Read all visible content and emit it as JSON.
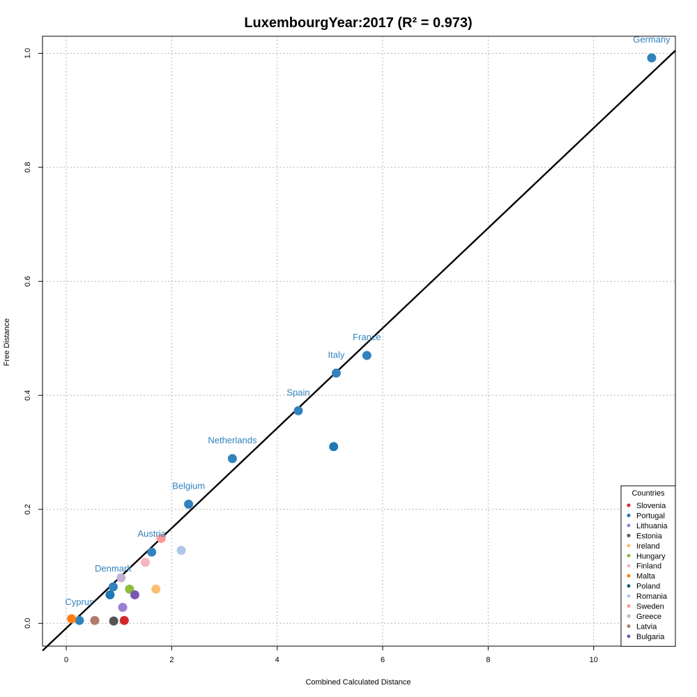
{
  "chart_data": {
    "type": "scatter",
    "title": "LuxembourgYear:2017 (R² = 0.973)",
    "xlabel": "Combined Calculated Distance",
    "ylabel": "Free Distance",
    "xlim": [
      -0.45,
      11.55
    ],
    "ylim": [
      -0.04,
      1.03
    ],
    "xticks": [
      0,
      2,
      4,
      6,
      8,
      10
    ],
    "yticks": [
      0.0,
      0.2,
      0.4,
      0.6,
      0.8,
      1.0
    ],
    "xtick_labels": [
      "0",
      "2",
      "4",
      "6",
      "8",
      "10"
    ],
    "ytick_labels": [
      "0.0",
      "0.2",
      "0.4",
      "0.6",
      "0.8",
      "1.0"
    ],
    "grid": true,
    "fit_line": {
      "x": [
        -0.45,
        11.55
      ],
      "y": [
        -0.048,
        1.005
      ],
      "color": "#000000"
    },
    "points": [
      {
        "x": 11.1,
        "y": 0.992,
        "color": "#3182bd",
        "label": "Germany"
      },
      {
        "x": 5.7,
        "y": 0.47,
        "color": "#3182bd",
        "label": "France"
      },
      {
        "x": 5.12,
        "y": 0.439,
        "color": "#3182bd",
        "label": "Italy"
      },
      {
        "x": 4.4,
        "y": 0.373,
        "color": "#3182bd",
        "label": "Spain"
      },
      {
        "x": 3.15,
        "y": 0.289,
        "color": "#3182bd",
        "label": "Netherlands"
      },
      {
        "x": 2.32,
        "y": 0.209,
        "color": "#3182bd",
        "label": "Belgium"
      },
      {
        "x": 1.62,
        "y": 0.125,
        "color": "#3182bd",
        "label": "Austria"
      },
      {
        "x": 0.89,
        "y": 0.064,
        "color": "#3182bd",
        "label": "Denmark"
      },
      {
        "x": 0.25,
        "y": 0.005,
        "color": "#3182bd",
        "label": "Cyprus"
      },
      {
        "x": 5.07,
        "y": 0.31,
        "color": "#1f77b4",
        "label": ""
      },
      {
        "x": 0.83,
        "y": 0.05,
        "color": "#1f77b4",
        "label": ""
      },
      {
        "x": 2.18,
        "y": 0.128,
        "color": "#aec7e8",
        "label": ""
      },
      {
        "x": 1.8,
        "y": 0.149,
        "color": "#ff9896",
        "label": ""
      },
      {
        "x": 1.5,
        "y": 0.107,
        "color": "#f7b6c2",
        "label": ""
      },
      {
        "x": 1.7,
        "y": 0.06,
        "color": "#fdbf6f",
        "label": ""
      },
      {
        "x": 1.2,
        "y": 0.06,
        "color": "#8fbc3c",
        "label": ""
      },
      {
        "x": 1.3,
        "y": 0.05,
        "color": "#7b58b0",
        "label": ""
      },
      {
        "x": 1.04,
        "y": 0.08,
        "color": "#c5b0d5",
        "label": ""
      },
      {
        "x": 1.07,
        "y": 0.028,
        "color": "#9b7fd4",
        "label": ""
      },
      {
        "x": 0.1,
        "y": 0.008,
        "color": "#ff7f0e",
        "label": ""
      },
      {
        "x": 0.54,
        "y": 0.005,
        "color": "#b07b6a",
        "label": ""
      },
      {
        "x": 0.9,
        "y": 0.004,
        "color": "#555555",
        "label": ""
      },
      {
        "x": 1.1,
        "y": 0.005,
        "color": "#d62728",
        "label": ""
      }
    ],
    "legend": {
      "title": "Countries",
      "position": "bottom-right",
      "entries": [
        {
          "name": "Slovenia",
          "color": "#d62728"
        },
        {
          "name": "Portugal",
          "color": "#1f77b4"
        },
        {
          "name": "Lithuania",
          "color": "#9b7fd4"
        },
        {
          "name": "Estonia",
          "color": "#555555"
        },
        {
          "name": "Ireland",
          "color": "#fdbf6f"
        },
        {
          "name": "Hungary",
          "color": "#8fbc3c"
        },
        {
          "name": "Finland",
          "color": "#f7b6c2"
        },
        {
          "name": "Malta",
          "color": "#ff7f0e"
        },
        {
          "name": "Poland",
          "color": "#17607d"
        },
        {
          "name": "Romania",
          "color": "#aec7e8"
        },
        {
          "name": "Sweden",
          "color": "#ff9896"
        },
        {
          "name": "Greece",
          "color": "#c5b0d5"
        },
        {
          "name": "Latvia",
          "color": "#b07b6a"
        },
        {
          "name": "Bulgaria",
          "color": "#7b58b0"
        }
      ]
    }
  }
}
